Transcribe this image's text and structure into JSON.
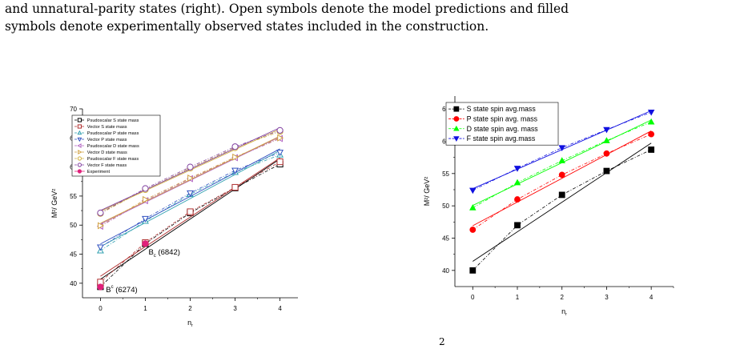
{
  "caption": {
    "line1": "and unnatural-parity states (right).  Open symbols denote the model predictions and filled",
    "line2": "symbols denote experimentally observed states included in the construction."
  },
  "formula_fragment": "2",
  "chart_data": [
    {
      "type": "line",
      "xlabel": "n",
      "xlabel_sub": "r",
      "ylabel": "M²/ GeV²",
      "xlim": [
        -0.4,
        4.4
      ],
      "ylim": [
        37.5,
        70
      ],
      "xticks": [
        "0",
        "1",
        "2",
        "3",
        "4"
      ],
      "yticks": [
        "40",
        "45",
        "50",
        "55",
        "60",
        "65",
        "70"
      ],
      "legend_position": "top-left",
      "series": [
        {
          "name": "Psudoscalar S state mass",
          "color": "#000000",
          "marker": "square-open",
          "x": [
            0,
            1,
            2,
            3,
            4
          ],
          "values": [
            39.4,
            46.8,
            52.1,
            56.4,
            60.5
          ]
        },
        {
          "name": "Vector S state mass",
          "color": "#b03030",
          "marker": "square-open",
          "x": [
            0,
            1,
            2,
            3,
            4
          ],
          "values": [
            40.2,
            47.0,
            52.3,
            56.5,
            60.9
          ]
        },
        {
          "name": "Psudoscalar P state mass",
          "color": "#30a0b0",
          "marker": "triangle-up-open",
          "x": [
            0,
            1,
            2,
            3,
            4
          ],
          "values": [
            45.6,
            50.7,
            55.3,
            59.1,
            62.1
          ]
        },
        {
          "name": "Vector P state mass",
          "color": "#3050c0",
          "marker": "triangle-down-open",
          "x": [
            0,
            1,
            2,
            3,
            4
          ],
          "values": [
            46.2,
            51.1,
            55.5,
            59.4,
            62.5
          ]
        },
        {
          "name": "Psudoscalar D state mass",
          "color": "#b060c0",
          "marker": "triangle-left-open",
          "x": [
            0,
            1,
            2,
            3,
            4
          ],
          "values": [
            49.8,
            54.2,
            58.0,
            61.6,
            64.9
          ]
        },
        {
          "name": "Vector D state mass",
          "color": "#d0a040",
          "marker": "triangle-right-open",
          "x": [
            0,
            1,
            2,
            3,
            4
          ],
          "values": [
            49.9,
            54.4,
            58.1,
            61.7,
            65.0
          ]
        },
        {
          "name": "Psudoscalar F state mass",
          "color": "#d0b040",
          "marker": "circle-open",
          "x": [
            0,
            1,
            2,
            3,
            4
          ],
          "values": [
            52.0,
            56.1,
            59.8,
            63.3,
            66.1
          ]
        },
        {
          "name": "Vector F state mass",
          "color": "#8040a0",
          "marker": "circle-open",
          "x": [
            0,
            1,
            2,
            3,
            4
          ],
          "values": [
            52.1,
            56.3,
            60.0,
            63.5,
            66.3
          ]
        },
        {
          "name": "Experiment",
          "color": "#e0207a",
          "marker": "circle-filled",
          "x": [
            0,
            1
          ],
          "values": [
            39.36,
            46.81
          ]
        }
      ],
      "annotations": [
        {
          "text": "B",
          "sub": "c",
          "suffix": " (6842)",
          "x": 1.0,
          "y": 45.5
        },
        {
          "text": "B",
          "sup": "c",
          "suffix": " (6274)",
          "x": 0.05,
          "y": 39.0
        }
      ]
    },
    {
      "type": "line",
      "xlabel": "n",
      "xlabel_sub": "r",
      "ylabel": "M²/ GeV²",
      "xlim": [
        -0.4,
        4.5
      ],
      "ylim": [
        37.5,
        67
      ],
      "xticks": [
        "0",
        "1",
        "2",
        "3",
        "4"
      ],
      "yticks": [
        "40",
        "45",
        "50",
        "55",
        "60",
        "65"
      ],
      "legend_position": "top-left",
      "series": [
        {
          "name": "S state spin avg.mass",
          "color": "#000000",
          "marker": "square-filled",
          "x": [
            0,
            1,
            2,
            3,
            4
          ],
          "values": [
            40.0,
            47.0,
            51.7,
            55.4,
            58.7
          ]
        },
        {
          "name": "P state spin avg. mass",
          "color": "#ff0000",
          "marker": "circle-filled",
          "x": [
            0,
            1,
            2,
            3,
            4
          ],
          "values": [
            46.3,
            51.0,
            54.8,
            58.1,
            61.1
          ]
        },
        {
          "name": "D state spin avg. mass",
          "color": "#00ff00",
          "marker": "triangle-up-filled",
          "x": [
            0,
            1,
            2,
            3,
            4
          ],
          "values": [
            49.7,
            53.6,
            57.0,
            60.1,
            63.0
          ]
        },
        {
          "name": "F state spin avg.mass",
          "color": "#1010e0",
          "marker": "triangle-down-filled",
          "x": [
            0,
            1,
            2,
            3,
            4
          ],
          "values": [
            52.4,
            55.8,
            59.0,
            61.8,
            64.5
          ]
        }
      ]
    }
  ]
}
